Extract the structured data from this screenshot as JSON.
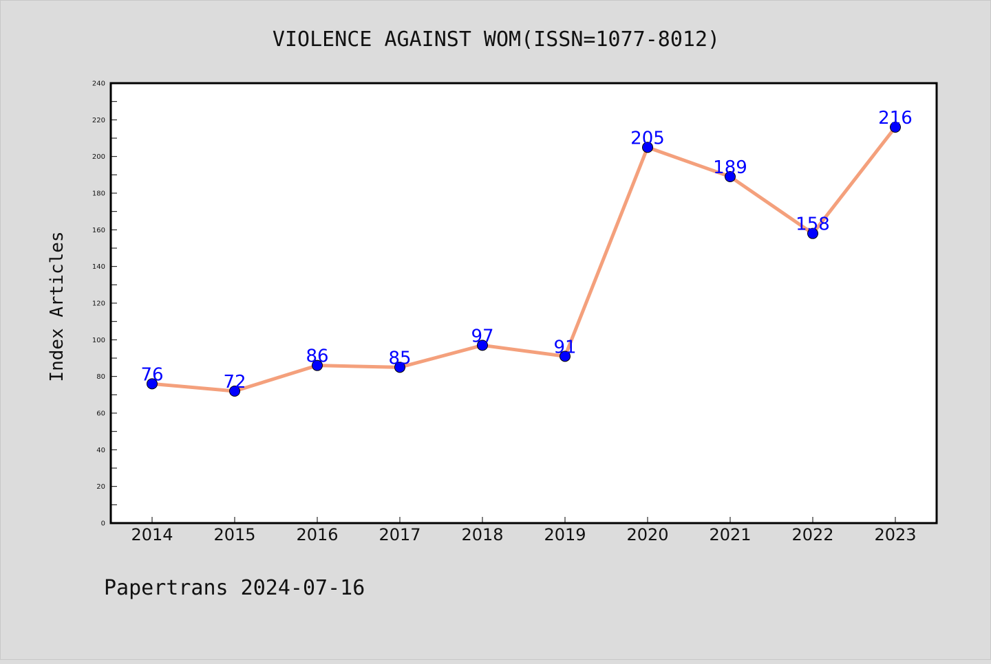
{
  "chart_data": {
    "type": "line",
    "title": "VIOLENCE AGAINST WOM(ISSN=1077-8012)",
    "ylabel": "Index Articles",
    "xlabel": "",
    "categories": [
      "2014",
      "2015",
      "2016",
      "2017",
      "2018",
      "2019",
      "2020",
      "2021",
      "2022",
      "2023"
    ],
    "series": [
      {
        "values": [
          76,
          72,
          86,
          85,
          97,
          91,
          205,
          189,
          158,
          216
        ],
        "line_color": "#f4a07c",
        "marker_color": "#0000ff"
      }
    ],
    "ylim": [
      0,
      240
    ],
    "yticks": [
      0,
      20,
      40,
      60,
      80,
      100,
      120,
      140,
      160,
      180,
      200,
      220,
      240
    ],
    "data_labels": true,
    "grid": false,
    "legend": "none"
  },
  "footer": "Papertrans 2024-07-16",
  "colors": {
    "background": "#dcdcdc",
    "plot_background": "#ffffff",
    "axis": "#000000"
  }
}
